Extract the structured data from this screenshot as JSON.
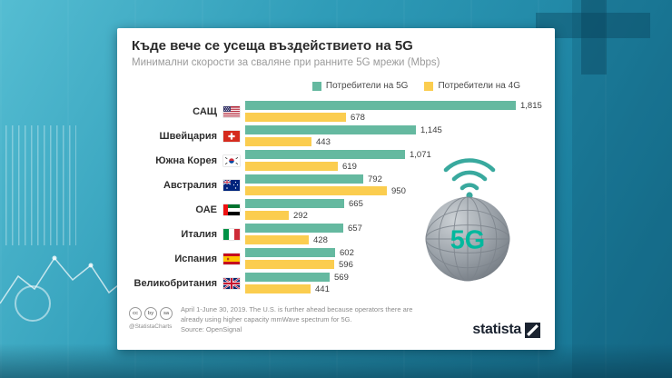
{
  "colors": {
    "background_teal": "#2a96b4",
    "bar_5g": "#65b9a0",
    "bar_4g": "#fbcd4f",
    "accent_teal": "#39a99e",
    "brand_navy": "#1b2330"
  },
  "chart_data": {
    "type": "bar",
    "orientation": "horizontal",
    "title": "Къде вече се усеща въздействието на 5G",
    "subtitle": "Минимални скорости за сваляне при ранните 5G мрежи (Mbps)",
    "legend": [
      {
        "label": "Потребители на 5G",
        "color": "#65b9a0"
      },
      {
        "label": "Потребители на 4G",
        "color": "#fbcd4f"
      }
    ],
    "categories": [
      "САЩ",
      "Швейцария",
      "Южна Корея",
      "Австралия",
      "ОАЕ",
      "Италия",
      "Испания",
      "Великобритания"
    ],
    "flags": [
      "us",
      "ch",
      "kr",
      "au",
      "ae",
      "it",
      "es",
      "gb"
    ],
    "series": [
      {
        "name": "Потребители на 5G",
        "color": "#65b9a0",
        "values": [
          1815,
          1145,
          1071,
          792,
          665,
          657,
          602,
          569
        ]
      },
      {
        "name": "Потребители на 4G",
        "color": "#fbcd4f",
        "values": [
          678,
          443,
          619,
          950,
          292,
          428,
          596,
          441
        ]
      }
    ],
    "value_labels_5g": [
      "1,815",
      "1,145",
      "1,071",
      "792",
      "665",
      "657",
      "602",
      "569"
    ],
    "value_labels_4g": [
      "678",
      "443",
      "619",
      "950",
      "292",
      "428",
      "596",
      "441"
    ],
    "xmax": 1815,
    "xlabel": "",
    "ylabel": "",
    "grid": false,
    "legend_position": "top-right"
  },
  "graphic": {
    "globe_label": "5G"
  },
  "footnote": {
    "text": "April 1-June 30, 2019. The U.S. is further ahead because operators there are already using higher capacity mmWave spectrum for 5G.",
    "source": "Source: OpenSignal"
  },
  "footer": {
    "handle": "@StatistaCharts",
    "brand": "statista",
    "cc_icons": [
      "cc",
      "by",
      "sa"
    ]
  }
}
